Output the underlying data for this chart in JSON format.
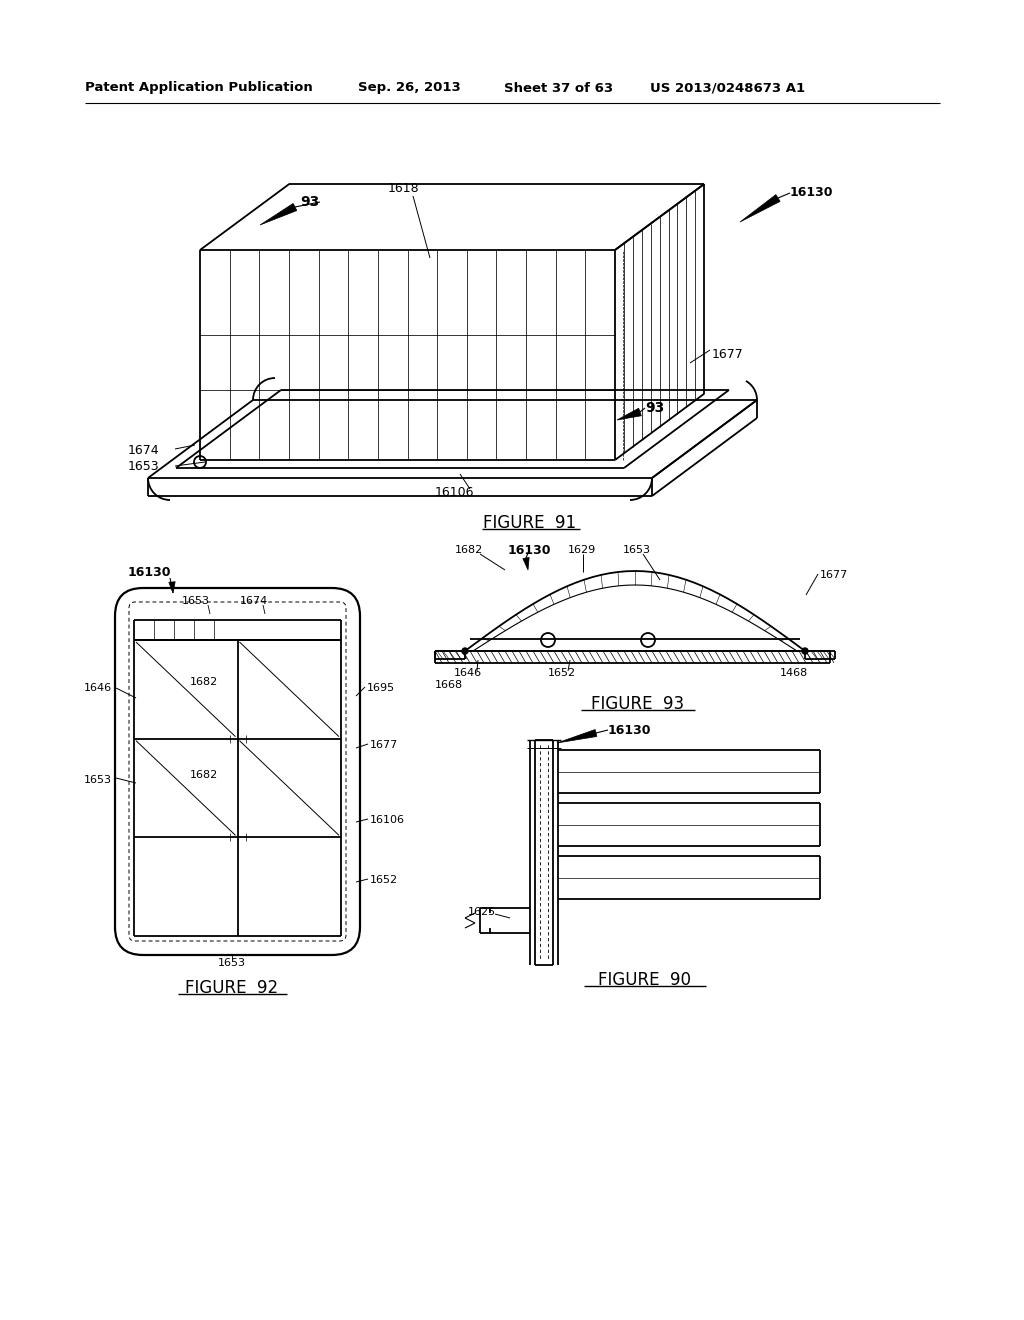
{
  "bg_color": "#ffffff",
  "header_text": "Patent Application Publication",
  "header_date": "Sep. 26, 2013",
  "header_sheet": "Sheet 37 of 63",
  "header_patent": "US 2013/0248673 A1",
  "fig91_label": "FIGURE  91",
  "fig92_label": "FIGURE  92",
  "fig93_label": "FIGURE  93",
  "fig90_label": "FIGURE  90",
  "text_color": "#000000",
  "line_color": "#000000",
  "line_width": 1.3,
  "thin_line": 0.7,
  "hatch_color": "#555555"
}
